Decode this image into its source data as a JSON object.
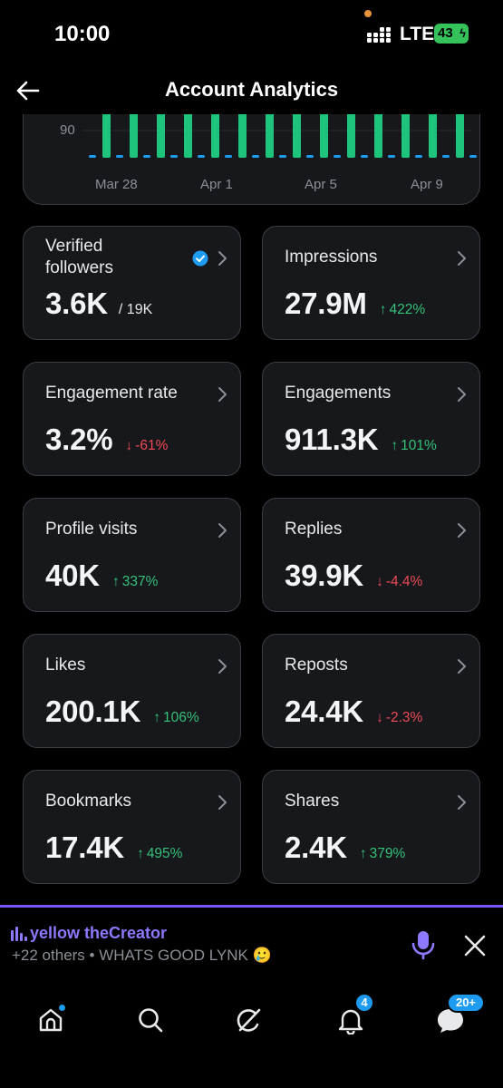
{
  "status_bar": {
    "time": "10:00",
    "network": "LTE",
    "battery": "43"
  },
  "header": {
    "title": "Account Analytics",
    "back_icon": "arrow-left-icon"
  },
  "chart": {
    "y_tick_label": "90",
    "x_labels": [
      "Mar 28",
      "Apr 1",
      "Apr 5",
      "Apr 9"
    ],
    "colors": {
      "green": "#1ec47c",
      "blue": "#1d9bf0"
    }
  },
  "chart_data": {
    "type": "bar",
    "xlabel": "",
    "ylabel": "",
    "x_tick_labels": [
      "Mar 28",
      "Apr 1",
      "Apr 5",
      "Apr 9"
    ],
    "y_tick_labels": [
      "90"
    ],
    "series": [
      {
        "color": "#1ec47c",
        "values": [
          100,
          100,
          100,
          100,
          100,
          60,
          100,
          100,
          100,
          100,
          100,
          100,
          100,
          100,
          100,
          80,
          100,
          90,
          80
        ]
      },
      {
        "color": "#1d9bf0",
        "values": [
          3,
          3,
          3,
          3,
          3,
          3,
          3,
          3,
          3,
          3,
          3,
          3,
          3,
          3,
          3,
          3,
          3,
          3,
          3
        ]
      }
    ]
  },
  "stats": [
    {
      "label": "Verified followers",
      "value": "3.6K",
      "total": "/ 19K",
      "change": "",
      "direction": "",
      "verified": true
    },
    {
      "label": "Impressions",
      "value": "27.9M",
      "total": "",
      "change": "422%",
      "direction": "up",
      "verified": false
    },
    {
      "label": "Engagement rate",
      "value": "3.2%",
      "total": "",
      "change": "-61%",
      "direction": "down",
      "verified": false
    },
    {
      "label": "Engagements",
      "value": "911.3K",
      "total": "",
      "change": "101%",
      "direction": "up",
      "verified": false
    },
    {
      "label": "Profile visits",
      "value": "40K",
      "total": "",
      "change": "337%",
      "direction": "up",
      "verified": false
    },
    {
      "label": "Replies",
      "value": "39.9K",
      "total": "",
      "change": "-4.4%",
      "direction": "down",
      "verified": false
    },
    {
      "label": "Likes",
      "value": "200.1K",
      "total": "",
      "change": "106%",
      "direction": "up",
      "verified": false
    },
    {
      "label": "Reposts",
      "value": "24.4K",
      "total": "",
      "change": "-2.3%",
      "direction": "down",
      "verified": false
    },
    {
      "label": "Bookmarks",
      "value": "17.4K",
      "total": "",
      "change": "495%",
      "direction": "up",
      "verified": false
    },
    {
      "label": "Shares",
      "value": "2.4K",
      "total": "",
      "change": "379%",
      "direction": "up",
      "verified": false
    }
  ],
  "arrows": {
    "up": "↑",
    "down": "↓"
  },
  "spaces": {
    "host": "yellow theCreator",
    "subtitle": "+22 others • WHATS GOOD LYNK 🥲",
    "accent": "#7856ff"
  },
  "nav": {
    "items": [
      "home-icon",
      "search-icon",
      "grok-icon",
      "bell-icon",
      "messages-icon"
    ],
    "notifications_badge": "4",
    "messages_badge": "20+"
  }
}
